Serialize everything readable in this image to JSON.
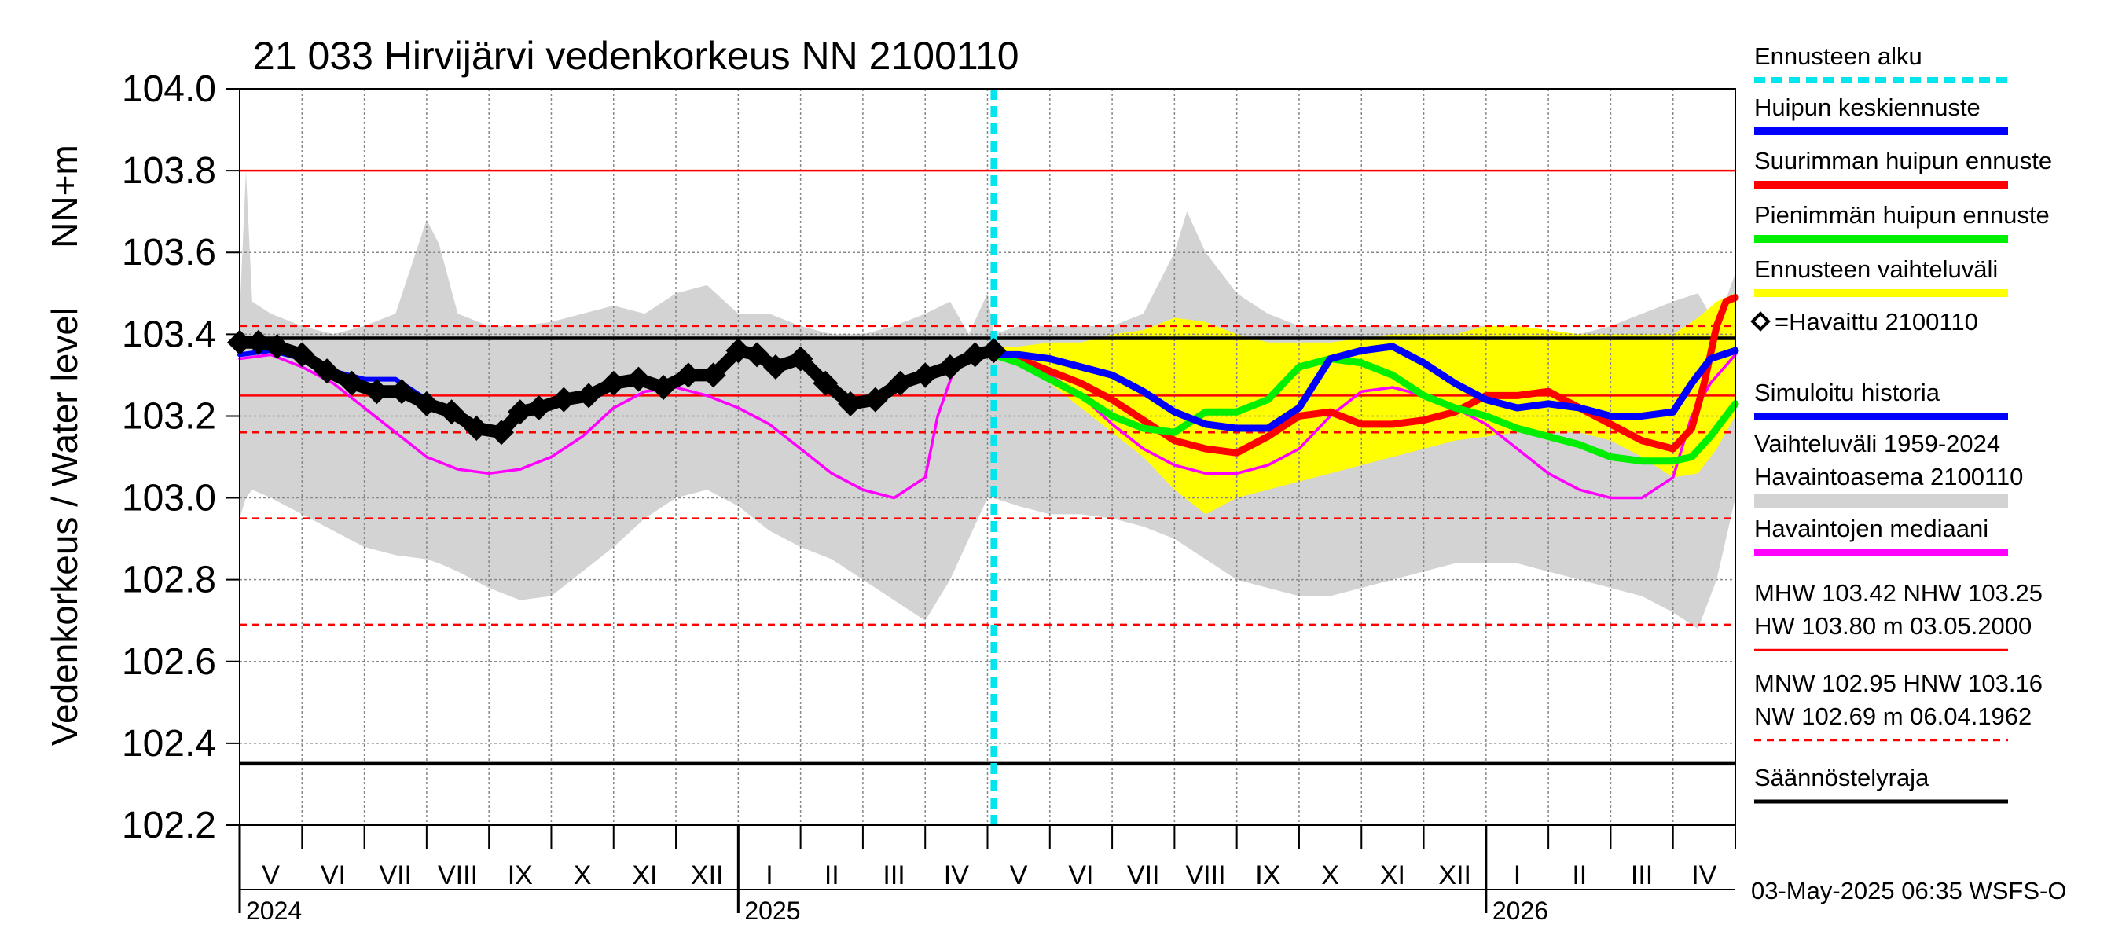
{
  "chart_data": {
    "type": "line",
    "title": "21 033 Hirvijärvi vedenkorkeus NN 2100110",
    "ylabel_top": "NN+m",
    "ylabel": "Vedenkorkeus / Water level",
    "ylim": [
      102.2,
      104.0
    ],
    "yticks": [
      "104.0",
      "103.8",
      "103.6",
      "103.4",
      "103.2",
      "103.0",
      "102.8",
      "102.6",
      "102.4",
      "102.2"
    ],
    "ytick_values": [
      104.0,
      103.8,
      103.6,
      103.4,
      103.2,
      103.0,
      102.8,
      102.6,
      102.4,
      102.2
    ],
    "x_months": [
      "V",
      "VI",
      "VII",
      "VIII",
      "IX",
      "X",
      "XI",
      "XII",
      "I",
      "II",
      "III",
      "IV",
      "V",
      "VI",
      "VII",
      "VIII",
      "IX",
      "X",
      "XI",
      "XII",
      "I",
      "II",
      "III",
      "IV"
    ],
    "x_years": [
      "2024",
      "2025",
      "2026"
    ],
    "year_start_month_index": [
      0,
      8,
      20
    ],
    "forecast_start_month": 12.1,
    "reference_lines": {
      "MHW": 103.42,
      "NHW": 103.25,
      "HW": 103.8,
      "MNW": 102.95,
      "HNW": 103.16,
      "NW": 102.69,
      "regulation_limits": [
        103.39,
        102.35
      ]
    },
    "series": [
      {
        "name": "Vaihteluväli 1959-2024 Havaintoasema 2100110",
        "kind": "band",
        "color": "#d3d3d3",
        "x": [
          0,
          0.1,
          0.2,
          0.5,
          1,
          1.5,
          2,
          2.5,
          3,
          3.2,
          3.5,
          4,
          4.5,
          5,
          5.5,
          6,
          6.5,
          7,
          7.5,
          8,
          8.5,
          9,
          9.5,
          10,
          10.5,
          11,
          11.4,
          11.7,
          12,
          12.1,
          12.5,
          13,
          13.5,
          14,
          14.5,
          15,
          15.2,
          15.5,
          16,
          16.5,
          17,
          17.5,
          18,
          18.5,
          19,
          19.5,
          20,
          20.5,
          21,
          21.5,
          22,
          22.5,
          23,
          23.4,
          23.7,
          24
        ],
        "upper": [
          103.45,
          103.8,
          103.48,
          103.45,
          103.42,
          103.4,
          103.42,
          103.45,
          103.68,
          103.62,
          103.45,
          103.42,
          103.42,
          103.43,
          103.45,
          103.47,
          103.45,
          103.5,
          103.52,
          103.45,
          103.45,
          103.42,
          103.4,
          103.4,
          103.42,
          103.45,
          103.48,
          103.4,
          103.5,
          103.4,
          103.42,
          103.42,
          103.42,
          103.42,
          103.45,
          103.6,
          103.7,
          103.6,
          103.5,
          103.45,
          103.42,
          103.42,
          103.42,
          103.42,
          103.42,
          103.42,
          103.42,
          103.4,
          103.4,
          103.4,
          103.42,
          103.45,
          103.48,
          103.5,
          103.42,
          103.55
        ],
        "lower": [
          102.95,
          103.0,
          103.02,
          103.0,
          102.96,
          102.92,
          102.88,
          102.86,
          102.85,
          102.84,
          102.82,
          102.78,
          102.75,
          102.76,
          102.82,
          102.88,
          102.95,
          103.0,
          103.02,
          102.98,
          102.92,
          102.88,
          102.85,
          102.8,
          102.75,
          102.7,
          102.8,
          102.9,
          103.0,
          103.0,
          102.98,
          102.96,
          102.96,
          102.95,
          102.93,
          102.9,
          102.88,
          102.85,
          102.8,
          102.78,
          102.76,
          102.76,
          102.78,
          102.8,
          102.82,
          102.84,
          102.84,
          102.84,
          102.82,
          102.8,
          102.78,
          102.76,
          102.72,
          102.68,
          102.8,
          103.0
        ]
      },
      {
        "name": "Ennusteen vaihteluväli",
        "kind": "band",
        "color": "#ffff00",
        "x": [
          12.1,
          12.5,
          13,
          13.5,
          14,
          14.5,
          15,
          15.5,
          16,
          16.5,
          17,
          17.5,
          18,
          18.5,
          19,
          19.5,
          20,
          20.5,
          21,
          21.5,
          22,
          22.5,
          23,
          23.4,
          23.7,
          24
        ],
        "upper": [
          103.37,
          103.37,
          103.38,
          103.38,
          103.4,
          103.41,
          103.44,
          103.43,
          103.4,
          103.38,
          103.38,
          103.38,
          103.39,
          103.4,
          103.4,
          103.4,
          103.42,
          103.42,
          103.41,
          103.4,
          103.4,
          103.4,
          103.4,
          103.44,
          103.48,
          103.5
        ],
        "lower": [
          103.36,
          103.33,
          103.28,
          103.22,
          103.16,
          103.1,
          103.02,
          102.96,
          103.0,
          103.02,
          103.04,
          103.06,
          103.08,
          103.1,
          103.12,
          103.14,
          103.15,
          103.16,
          103.16,
          103.16,
          103.14,
          103.1,
          103.05,
          103.06,
          103.12,
          103.2
        ]
      },
      {
        "name": "Havaintojen mediaani",
        "color": "#ff00ff",
        "x": [
          0,
          0.5,
          1,
          1.5,
          2,
          2.5,
          3,
          3.5,
          4,
          4.5,
          5,
          5.5,
          6,
          6.5,
          7,
          7.5,
          8,
          8.5,
          9,
          9.5,
          10,
          10.5,
          11,
          11.2,
          11.5,
          12,
          12.5,
          13,
          13.5,
          14,
          14.5,
          15,
          15.5,
          16,
          16.5,
          17,
          17.5,
          18,
          18.5,
          19,
          19.5,
          20,
          20.5,
          21,
          21.5,
          22,
          22.5,
          23,
          23.3,
          23.6,
          24
        ],
        "y": [
          103.34,
          103.35,
          103.32,
          103.28,
          103.22,
          103.16,
          103.1,
          103.07,
          103.06,
          103.07,
          103.1,
          103.15,
          103.22,
          103.26,
          103.27,
          103.25,
          103.22,
          103.18,
          103.12,
          103.06,
          103.02,
          103.0,
          103.05,
          103.2,
          103.33,
          103.36,
          103.34,
          103.3,
          103.25,
          103.18,
          103.12,
          103.08,
          103.06,
          103.06,
          103.08,
          103.12,
          103.2,
          103.26,
          103.27,
          103.25,
          103.22,
          103.18,
          103.12,
          103.06,
          103.02,
          103.0,
          103.0,
          103.05,
          103.2,
          103.28,
          103.35
        ]
      },
      {
        "name": "Simuloitu historia",
        "color": "#0000ff",
        "x": [
          0,
          0.5,
          1,
          1.5,
          2,
          2.5,
          3
        ],
        "y": [
          103.35,
          103.36,
          103.34,
          103.31,
          103.29,
          103.29,
          103.24
        ]
      },
      {
        "name": "Havaittu 2100110",
        "kind": "markers",
        "color": "#000000",
        "x": [
          0,
          0.3,
          0.6,
          1,
          1.4,
          1.8,
          2.2,
          2.6,
          3,
          3.4,
          3.8,
          4.2,
          4.5,
          4.8,
          5.2,
          5.6,
          6,
          6.4,
          6.8,
          7.2,
          7.6,
          8,
          8.3,
          8.6,
          9,
          9.4,
          9.8,
          10.2,
          10.6,
          11,
          11.4,
          11.8,
          12.1
        ],
        "y": [
          103.38,
          103.38,
          103.37,
          103.35,
          103.31,
          103.28,
          103.26,
          103.26,
          103.23,
          103.21,
          103.17,
          103.16,
          103.21,
          103.22,
          103.24,
          103.25,
          103.28,
          103.29,
          103.27,
          103.3,
          103.3,
          103.36,
          103.35,
          103.32,
          103.34,
          103.28,
          103.23,
          103.24,
          103.28,
          103.3,
          103.32,
          103.35,
          103.36
        ]
      },
      {
        "name": "Suurimman huipun ennuste",
        "color": "#ff0000",
        "x": [
          12.1,
          12.5,
          13,
          13.5,
          14,
          14.5,
          15,
          15.5,
          16,
          16.5,
          17,
          17.5,
          18,
          18.5,
          19,
          19.5,
          20,
          20.5,
          21,
          21.5,
          22,
          22.5,
          23,
          23.3,
          23.5,
          23.7,
          23.85,
          24
        ],
        "y": [
          103.35,
          103.34,
          103.31,
          103.28,
          103.24,
          103.19,
          103.14,
          103.12,
          103.11,
          103.15,
          103.2,
          103.21,
          103.18,
          103.18,
          103.19,
          103.21,
          103.25,
          103.25,
          103.26,
          103.22,
          103.18,
          103.14,
          103.12,
          103.17,
          103.28,
          103.42,
          103.48,
          103.49
        ]
      },
      {
        "name": "Pienimmän huipun ennuste",
        "color": "#00ee00",
        "x": [
          12.1,
          12.5,
          13,
          13.5,
          14,
          14.5,
          15,
          15.5,
          16,
          16.5,
          17,
          17.5,
          18,
          18.5,
          19,
          19.5,
          20,
          20.5,
          21,
          21.5,
          22,
          22.5,
          23,
          23.3,
          23.6,
          24
        ],
        "y": [
          103.35,
          103.33,
          103.29,
          103.25,
          103.2,
          103.17,
          103.16,
          103.21,
          103.21,
          103.24,
          103.32,
          103.34,
          103.33,
          103.3,
          103.25,
          103.22,
          103.2,
          103.17,
          103.15,
          103.13,
          103.1,
          103.09,
          103.09,
          103.1,
          103.15,
          103.23
        ]
      },
      {
        "name": "Huipun keskiennuste",
        "color": "#0000ff",
        "x": [
          12.1,
          12.5,
          13,
          13.5,
          14,
          14.5,
          15,
          15.5,
          16,
          16.5,
          17,
          17.5,
          18,
          18.5,
          19,
          19.5,
          20,
          20.5,
          21,
          21.5,
          22,
          22.5,
          23,
          23.3,
          23.6,
          24
        ],
        "y": [
          103.35,
          103.35,
          103.34,
          103.32,
          103.3,
          103.26,
          103.21,
          103.18,
          103.17,
          103.17,
          103.22,
          103.34,
          103.36,
          103.37,
          103.33,
          103.28,
          103.24,
          103.22,
          103.23,
          103.22,
          103.2,
          103.2,
          103.21,
          103.28,
          103.34,
          103.36
        ]
      }
    ],
    "legend": {
      "placement": "right",
      "entries": [
        {
          "label": "Ennusteen alku",
          "color": "#00e5ee",
          "style": "dashed"
        },
        {
          "label": "Huipun keskiennuste",
          "color": "#0000ff"
        },
        {
          "label": "Suurimman huipun ennuste",
          "color": "#ff0000"
        },
        {
          "label": "Pienimmän huipun ennuste",
          "color": "#00ee00"
        },
        {
          "label": "Ennusteen vaihteluväli",
          "color": "#ffff00"
        },
        {
          "label": "=Havaittu 2100110",
          "color": "#000000",
          "style": "marker"
        },
        {
          "label": "Simuloitu historia",
          "color": "#0000ff"
        },
        {
          "label": "Vaihteluväli 1959-2024",
          "label2": " Havaintoasema 2100110",
          "color": "#d3d3d3",
          "style": "band"
        },
        {
          "label": "Havaintojen mediaani",
          "color": "#ff00ff"
        },
        {
          "label": "MHW 103.42 NHW 103.25",
          "label2": "HW 103.80 m 03.05.2000",
          "color": "#ff0000",
          "style": "thin"
        },
        {
          "label": "MNW 102.95 HNW 103.16",
          "label2": "NW 102.69 m 06.04.1962",
          "color": "#ff0000",
          "style": "thin-dashed"
        },
        {
          "label": "Säännöstelyraja",
          "color": "#000000"
        }
      ]
    },
    "footer": "03-May-2025 06:35 WSFS-O"
  }
}
